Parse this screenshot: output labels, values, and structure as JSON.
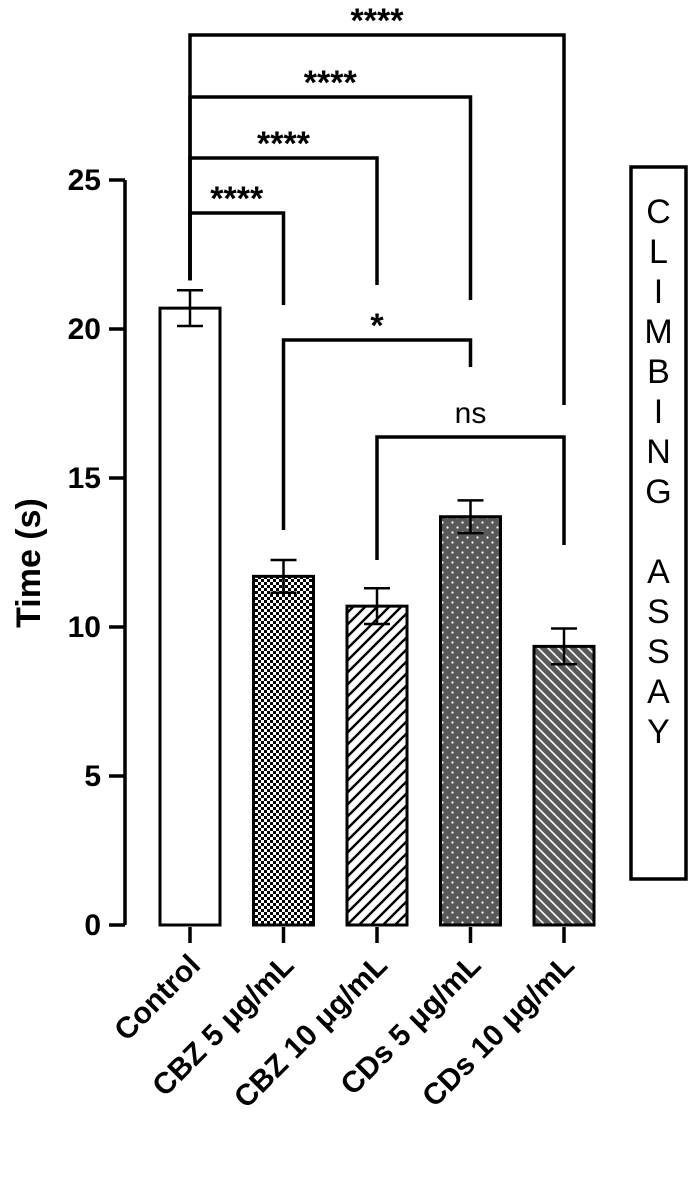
{
  "chart_data": {
    "type": "bar",
    "categories": [
      "Control",
      "CBZ 5 μg/mL",
      "CBZ 10 μg/mL",
      "CDs  5 μg/mL",
      "CDs 10 μg/mL"
    ],
    "values": [
      20.7,
      11.7,
      10.7,
      13.7,
      9.35
    ],
    "errors": [
      0.6,
      0.55,
      0.6,
      0.55,
      0.6
    ],
    "ylabel": "Time (s)",
    "xlabel": "",
    "ylim": [
      0,
      25
    ],
    "yticks": [
      0,
      5,
      10,
      15,
      20,
      25
    ],
    "grid": false,
    "bar_patterns": [
      "none",
      "checker",
      "diagonal-up",
      "dots",
      "diagonal-down"
    ],
    "comparisons": [
      {
        "from": 0,
        "to": 1,
        "label": "****"
      },
      {
        "from": 0,
        "to": 2,
        "label": "****"
      },
      {
        "from": 0,
        "to": 3,
        "label": "****"
      },
      {
        "from": 0,
        "to": 4,
        "label": "****"
      },
      {
        "from": 1,
        "to": 3,
        "label": "*"
      },
      {
        "from": 2,
        "to": 4,
        "label": "ns"
      }
    ],
    "side_label": "CLIMBING ASSAY"
  }
}
